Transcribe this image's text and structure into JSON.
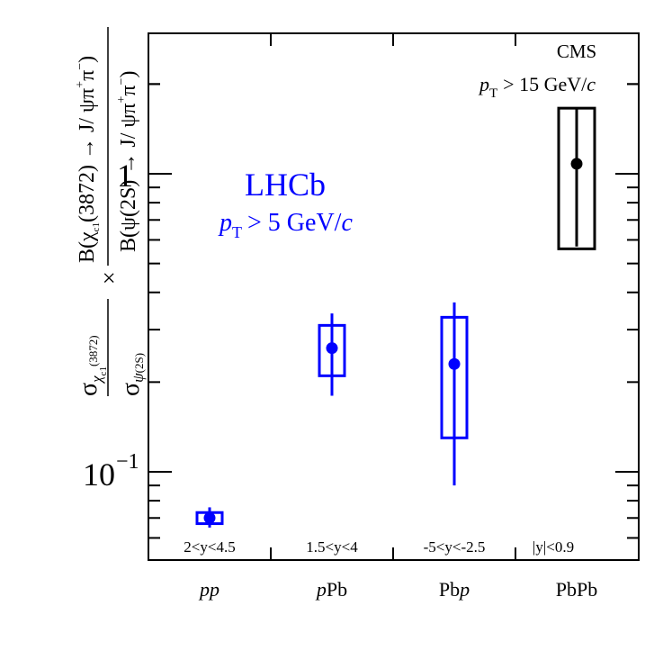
{
  "chart_data": {
    "type": "scatter",
    "y_scale": "log",
    "ylim": [
      0.06,
      2.6
    ],
    "grid": false,
    "ylabel": "σχc1(3872)/σψ(2S) × B(χc1(3872) → J/ψπ+π−)/B(ψ(2S) → J/ψπ+π−)",
    "categories": [
      "pp",
      "pPb",
      "Pbp",
      "PbPb"
    ],
    "y_tick_labels": [
      {
        "value": 0.1,
        "base": "10",
        "exp": "−1"
      },
      {
        "value": 1,
        "base": "1",
        "exp": ""
      }
    ],
    "rapidity_labels": [
      "2<y<4.5",
      "1.5<y<4",
      "-5<y<-2.5",
      "|y|<0.9"
    ],
    "series": [
      {
        "name": "LHCb",
        "color": "#0000ff",
        "points": [
          {
            "category": "pp",
            "value": 0.07,
            "stat_err": [
              0.065,
              0.076
            ],
            "syst_box": [
              0.067,
              0.073
            ]
          },
          {
            "category": "pPb",
            "value": 0.26,
            "stat_err": [
              0.18,
              0.34
            ],
            "syst_box": [
              0.21,
              0.31
            ]
          },
          {
            "category": "Pbp",
            "value": 0.23,
            "stat_err": [
              0.09,
              0.37
            ],
            "syst_box": [
              0.13,
              0.33
            ]
          }
        ]
      },
      {
        "name": "CMS",
        "color": "#000000",
        "points": [
          {
            "category": "PbPb",
            "value": 1.08,
            "stat_err": [
              0.57,
              1.65
            ],
            "syst_box": [
              0.56,
              1.66
            ]
          }
        ]
      }
    ],
    "annotations": {
      "lhcb": {
        "title": "LHCb",
        "cut": "pT > 5 GeV/c",
        "color": "#0000ff"
      },
      "cms": {
        "title": "CMS",
        "cut": "pT > 15 GeV/c",
        "color": "#000000"
      }
    }
  },
  "text": {
    "lhcb_title": "LHCb",
    "lhcb_cut": "> 5 GeV/",
    "cms_title": "CMS",
    "cms_cut": "> 15 GeV/",
    "p": "p",
    "T": "T",
    "c": "c",
    "y_sigma": "σ",
    "y_chi": "χ",
    "y_c1": "c1",
    "y_3872": "(3872)",
    "y_psi": "ψ",
    "y_2S": "(2S)",
    "y_times": "×",
    "y_num": "B(χ",
    "y_num_rest": "(3872) → J/ ψπ",
    "y_den": "B(ψ(2S) → J/ ψπ",
    "y_plus": "+",
    "y_minus": "−",
    "pi": "π",
    "close_paren": ")",
    "x_pp": "pp",
    "x_pPb_p": "p",
    "x_pPb_rest": "Pb",
    "x_Pbp_rest": "Pb",
    "x_Pbp_p": "p",
    "x_PbPb": "PbPb",
    "rap1": "2<y<4.5",
    "rap2": "1.5<y<4",
    "rap3": "-5<y<-2.5",
    "rap4": "|y|<0.9"
  }
}
